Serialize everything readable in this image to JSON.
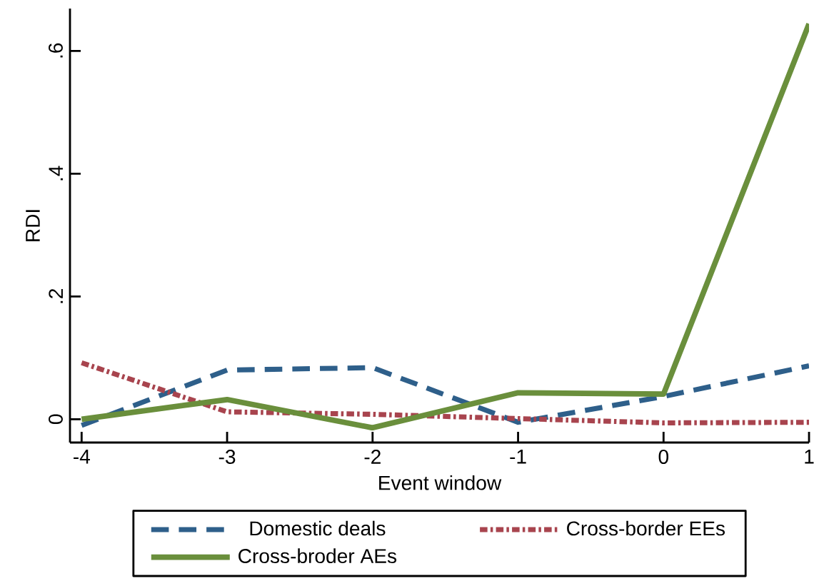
{
  "chart_data": {
    "type": "line",
    "xlabel": "Event window",
    "ylabel": "RDI",
    "x": [
      -4,
      -3,
      -2,
      -1,
      0,
      1
    ],
    "series": [
      {
        "name": "Domestic deals",
        "color": "#2e5f8a",
        "line_style": "dashed",
        "values": [
          -0.01,
          0.08,
          0.084,
          -0.005,
          0.037,
          0.087
        ]
      },
      {
        "name": "Cross-border EEs",
        "color": "#a8444e",
        "line_style": "dotted",
        "values": [
          0.092,
          0.012,
          0.008,
          0.001,
          -0.006,
          -0.005
        ]
      },
      {
        "name": "Cross-broder AEs",
        "color": "#6a8f3c",
        "line_style": "solid",
        "values": [
          0,
          0.032,
          -0.014,
          0.043,
          0.041,
          0.644
        ]
      }
    ],
    "xlim": [
      -4.08,
      1
    ],
    "ylim": [
      -0.038,
      0.669
    ],
    "xticks": [
      -4,
      -3,
      -2,
      -1,
      0,
      1
    ],
    "yticks": [
      0,
      {
        "value": 0.2,
        "label": ".2"
      },
      {
        "value": 0.4,
        "label": ".4"
      },
      {
        "value": 0.6,
        "label": ".6"
      }
    ],
    "grid": false,
    "legend": "bottom",
    "marker": "none"
  }
}
